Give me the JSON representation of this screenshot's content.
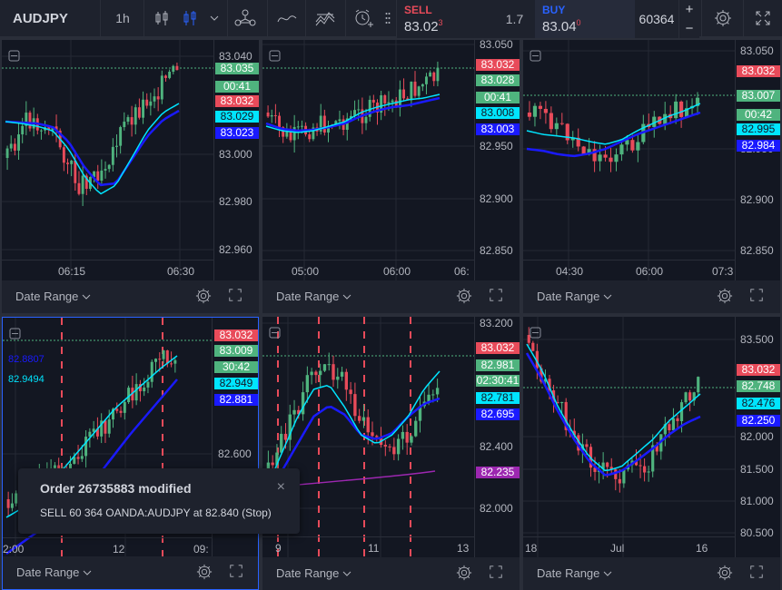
{
  "toolbar": {
    "symbol": "AUDJPY",
    "interval": "1h",
    "sell_label": "SELL",
    "sell_price": "83.02",
    "sell_price_sup": "3",
    "spread": "1.7",
    "buy_label": "BUY",
    "buy_price": "83.04",
    "buy_price_sup": "0",
    "quantity": "60364",
    "plus": "+",
    "minus": "−"
  },
  "colors": {
    "up": "#4fb37e",
    "down": "#e84b5a",
    "ema_fast": "#00e5ff",
    "ema_slow": "#1a1aff",
    "purple": "#9c27b0",
    "accent": "#2962ff"
  },
  "panels": [
    {
      "footer": "Date Range",
      "y_ticks": [
        "83.040",
        "83.000",
        "82.980",
        "82.960"
      ],
      "x_ticks": [
        "06:15",
        "06:30"
      ],
      "tags": [
        {
          "text": "83.035",
          "bg": "#4fb37e",
          "fg": "#ffffff"
        },
        {
          "text": "00:41",
          "bg": "#4fb37e",
          "fg": "#ffffff"
        },
        {
          "text": "83.032",
          "bg": "#e84b5a",
          "fg": "#ffffff"
        },
        {
          "text": "83.029",
          "bg": "#00e5ff",
          "fg": "#131722"
        },
        {
          "text": "83.023",
          "bg": "#1a1aff",
          "fg": "#ffffff"
        }
      ]
    },
    {
      "footer": "Date Range",
      "y_ticks": [
        "83.050",
        "82.950",
        "82.900",
        "82.850"
      ],
      "x_ticks": [
        "05:00",
        "06:00",
        "06:"
      ],
      "tags": [
        {
          "text": "83.032",
          "bg": "#e84b5a",
          "fg": "#ffffff"
        },
        {
          "text": "83.028",
          "bg": "#4fb37e",
          "fg": "#ffffff"
        },
        {
          "text": "00:41",
          "bg": "#4fb37e",
          "fg": "#ffffff"
        },
        {
          "text": "83.008",
          "bg": "#00e5ff",
          "fg": "#131722"
        },
        {
          "text": "83.003",
          "bg": "#1a1aff",
          "fg": "#ffffff"
        }
      ]
    },
    {
      "footer": "Date Range",
      "y_ticks": [
        "83.050",
        "82.950",
        "82.900",
        "82.850"
      ],
      "x_ticks": [
        "04:30",
        "06:00",
        "07:3"
      ],
      "tags": [
        {
          "text": "83.032",
          "bg": "#e84b5a",
          "fg": "#ffffff"
        },
        {
          "text": "83.007",
          "bg": "#4fb37e",
          "fg": "#ffffff"
        },
        {
          "text": "00:42",
          "bg": "#4fb37e",
          "fg": "#ffffff"
        },
        {
          "text": "82.995",
          "bg": "#00e5ff",
          "fg": "#131722"
        },
        {
          "text": "82.984",
          "bg": "#1a1aff",
          "fg": "#ffffff"
        }
      ]
    },
    {
      "footer": "Date Range",
      "y_ticks": [
        "82.600"
      ],
      "x_ticks": [
        "2:00",
        "12",
        "09:"
      ],
      "indicator_labels": [
        {
          "text": "82.8807",
          "color": "#1a1aff"
        },
        {
          "text": "82.9494",
          "color": "#00e5ff"
        }
      ],
      "tags": [
        {
          "text": "83.032",
          "bg": "#e84b5a",
          "fg": "#ffffff"
        },
        {
          "text": "83.009",
          "bg": "#4fb37e",
          "fg": "#ffffff"
        },
        {
          "text": "30:42",
          "bg": "#4fb37e",
          "fg": "#ffffff"
        },
        {
          "text": "82.949",
          "bg": "#00e5ff",
          "fg": "#131722"
        },
        {
          "text": "82.881",
          "bg": "#1a1aff",
          "fg": "#ffffff"
        }
      ]
    },
    {
      "footer": "Date Range",
      "y_ticks": [
        "83.200",
        "82.400",
        "82.000"
      ],
      "x_ticks": [
        "9",
        "11",
        "13"
      ],
      "tags": [
        {
          "text": "83.032",
          "bg": "#e84b5a",
          "fg": "#ffffff"
        },
        {
          "text": "82.981",
          "bg": "#4fb37e",
          "fg": "#ffffff"
        },
        {
          "text": "02:30:41",
          "bg": "#4fb37e",
          "fg": "#ffffff"
        },
        {
          "text": "82.781",
          "bg": "#00e5ff",
          "fg": "#131722"
        },
        {
          "text": "82.695",
          "bg": "#1a1aff",
          "fg": "#ffffff"
        },
        {
          "text": "82.235",
          "bg": "#9c27b0",
          "fg": "#ffffff"
        }
      ]
    },
    {
      "footer": "Date Range",
      "y_ticks": [
        "83.500",
        "82.000",
        "81.500",
        "81.000",
        "80.500"
      ],
      "x_ticks": [
        "18",
        "Jul",
        "16"
      ],
      "tags": [
        {
          "text": "83.032",
          "bg": "#e84b5a",
          "fg": "#ffffff"
        },
        {
          "text": "82.748",
          "bg": "#4fb37e",
          "fg": "#ffffff"
        },
        {
          "text": "82.476",
          "bg": "#00e5ff",
          "fg": "#131722"
        },
        {
          "text": "82.250",
          "bg": "#1a1aff",
          "fg": "#ffffff"
        }
      ]
    }
  ],
  "toast": {
    "title": "Order 26735883 modified",
    "body": "SELL 60 364 OANDA:AUDJPY at 82.840 (Stop)",
    "close": "×"
  }
}
